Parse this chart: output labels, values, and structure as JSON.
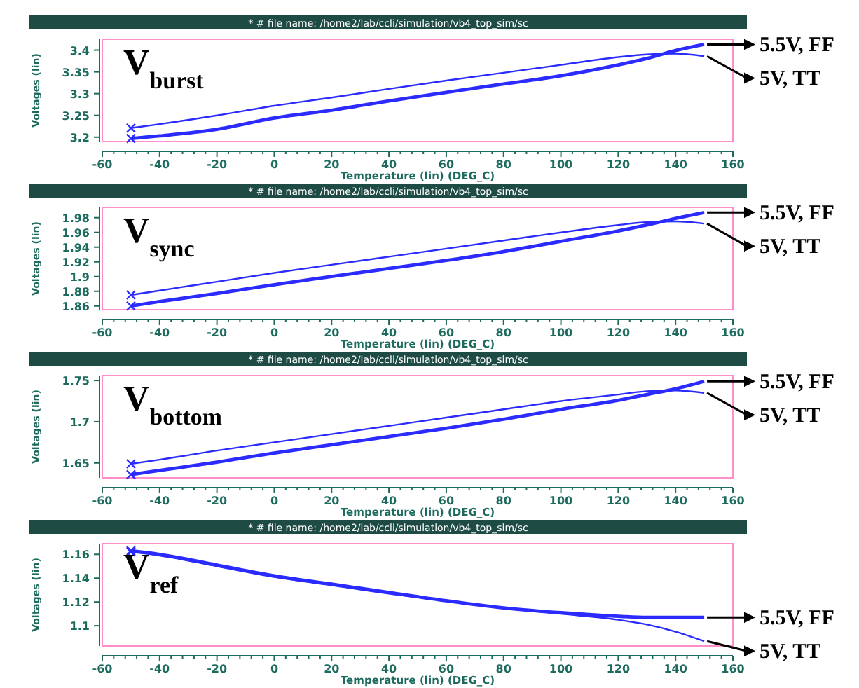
{
  "chart_data": [
    {
      "type": "line",
      "title": "V$_{burst}$",
      "subtitle": "* # file name: /home2/lab/ccli/simulation/vb4_top_sim/sc",
      "xlabel": "Temperature (lin) (DEG_C)",
      "ylabel": "Voltages (lin)",
      "x": [
        -50,
        -40,
        -20,
        0,
        20,
        40,
        60,
        80,
        100,
        120,
        130,
        140,
        150
      ],
      "xlim": [
        -60,
        160
      ],
      "xticks": [
        -60,
        -40,
        -20,
        0,
        20,
        40,
        60,
        80,
        100,
        120,
        140,
        160
      ],
      "ylim": [
        3.19,
        3.425
      ],
      "yticks": [
        3.2,
        3.25,
        3.3,
        3.35,
        3.4
      ],
      "series": [
        {
          "name": "5.5V, FF",
          "color": "#2b2bff",
          "values": [
            3.197,
            3.203,
            3.218,
            3.244,
            3.262,
            3.283,
            3.303,
            3.322,
            3.341,
            3.366,
            3.381,
            3.399,
            3.413
          ]
        },
        {
          "name": "5V, TT",
          "color": "#2b2bff",
          "values": [
            3.221,
            3.23,
            3.25,
            3.272,
            3.291,
            3.311,
            3.33,
            3.348,
            3.366,
            3.384,
            3.39,
            3.392,
            3.386
          ]
        }
      ]
    },
    {
      "type": "line",
      "title": "V$_{sync}$",
      "subtitle": "* # file name: /home2/lab/ccli/simulation/vb4_top_sim/sc",
      "xlabel": "Temperature (lin) (DEG_C)",
      "ylabel": "Voltages (lin)",
      "x": [
        -50,
        -40,
        -20,
        0,
        20,
        40,
        60,
        80,
        100,
        120,
        130,
        140,
        150
      ],
      "xlim": [
        -60,
        160
      ],
      "xticks": [
        -60,
        -40,
        -20,
        0,
        20,
        40,
        60,
        80,
        100,
        120,
        140,
        160
      ],
      "ylim": [
        1.855,
        1.994
      ],
      "yticks": [
        1.86,
        1.88,
        1.9,
        1.92,
        1.94,
        1.96,
        1.98
      ],
      "series": [
        {
          "name": "5.5V, FF",
          "color": "#2b2bff",
          "values": [
            1.86,
            1.866,
            1.877,
            1.889,
            1.9,
            1.911,
            1.922,
            1.934,
            1.948,
            1.962,
            1.97,
            1.979,
            1.987
          ]
        },
        {
          "name": "5V, TT",
          "color": "#2b2bff",
          "values": [
            1.875,
            1.881,
            1.893,
            1.905,
            1.916,
            1.927,
            1.938,
            1.949,
            1.96,
            1.97,
            1.974,
            1.975,
            1.972
          ]
        }
      ]
    },
    {
      "type": "line",
      "title": "V$_{bottom}$",
      "subtitle": "* # file name: /home2/lab/ccli/simulation/vb4_top_sim/sc",
      "xlabel": "Temperature (lin) (DEG_C)",
      "ylabel": "Voltages (lin)",
      "x": [
        -50,
        -40,
        -20,
        0,
        20,
        40,
        60,
        80,
        100,
        120,
        130,
        140,
        150
      ],
      "xlim": [
        -60,
        160
      ],
      "xticks": [
        -60,
        -40,
        -20,
        0,
        20,
        40,
        60,
        80,
        100,
        120,
        140,
        160
      ],
      "ylim": [
        1.632,
        1.756
      ],
      "yticks": [
        1.65,
        1.7,
        1.75
      ],
      "series": [
        {
          "name": "5.5V, FF",
          "color": "#2b2bff",
          "values": [
            1.636,
            1.641,
            1.651,
            1.662,
            1.672,
            1.682,
            1.692,
            1.703,
            1.715,
            1.726,
            1.733,
            1.74,
            1.749
          ]
        },
        {
          "name": "5V, TT",
          "color": "#2b2bff",
          "values": [
            1.649,
            1.654,
            1.665,
            1.675,
            1.685,
            1.695,
            1.705,
            1.715,
            1.725,
            1.733,
            1.737,
            1.738,
            1.735
          ]
        }
      ]
    },
    {
      "type": "line",
      "title": "V$_{ref}$",
      "subtitle": "* # file name: /home2/lab/ccli/simulation/vb4_top_sim/sc",
      "xlabel": "Temperature (lin) (DEG_C)",
      "ylabel": "Voltages (lin)",
      "x": [
        -50,
        -40,
        -20,
        0,
        20,
        40,
        60,
        80,
        100,
        120,
        130,
        140,
        150
      ],
      "xlim": [
        -60,
        160
      ],
      "xticks": [
        -60,
        -40,
        -20,
        0,
        20,
        40,
        60,
        80,
        100,
        120,
        140,
        160
      ],
      "ylim": [
        1.083,
        1.169
      ],
      "yticks": [
        1.1,
        1.12,
        1.14,
        1.16
      ],
      "series": [
        {
          "name": "5.5V, FF",
          "color": "#2b2bff",
          "values": [
            1.163,
            1.16,
            1.151,
            1.142,
            1.135,
            1.128,
            1.121,
            1.115,
            1.111,
            1.108,
            1.107,
            1.107,
            1.107
          ]
        },
        {
          "name": "5V, TT",
          "color": "#2b2bff",
          "values": [
            1.162,
            1.159,
            1.15,
            1.141,
            1.134,
            1.127,
            1.121,
            1.115,
            1.11,
            1.105,
            1.101,
            1.095,
            1.087
          ]
        }
      ]
    }
  ]
}
